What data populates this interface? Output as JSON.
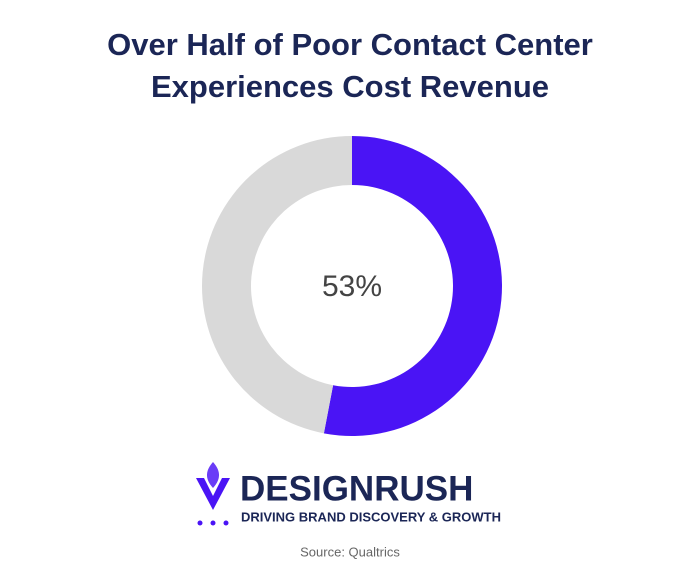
{
  "chart_data": {
    "type": "donut",
    "title": "Over Half of Poor Contact Center Experiences Cost Revenue",
    "values": [
      53,
      47
    ],
    "value_labels": [
      "53%",
      null
    ],
    "colors": [
      "#4a14f5",
      "#d9d9d9"
    ]
  },
  "logo": {
    "name": "DESIGNRUSH",
    "tagline": "DRIVING BRAND DISCOVERY & GROWTH"
  },
  "source": "Source: Qualtrics"
}
